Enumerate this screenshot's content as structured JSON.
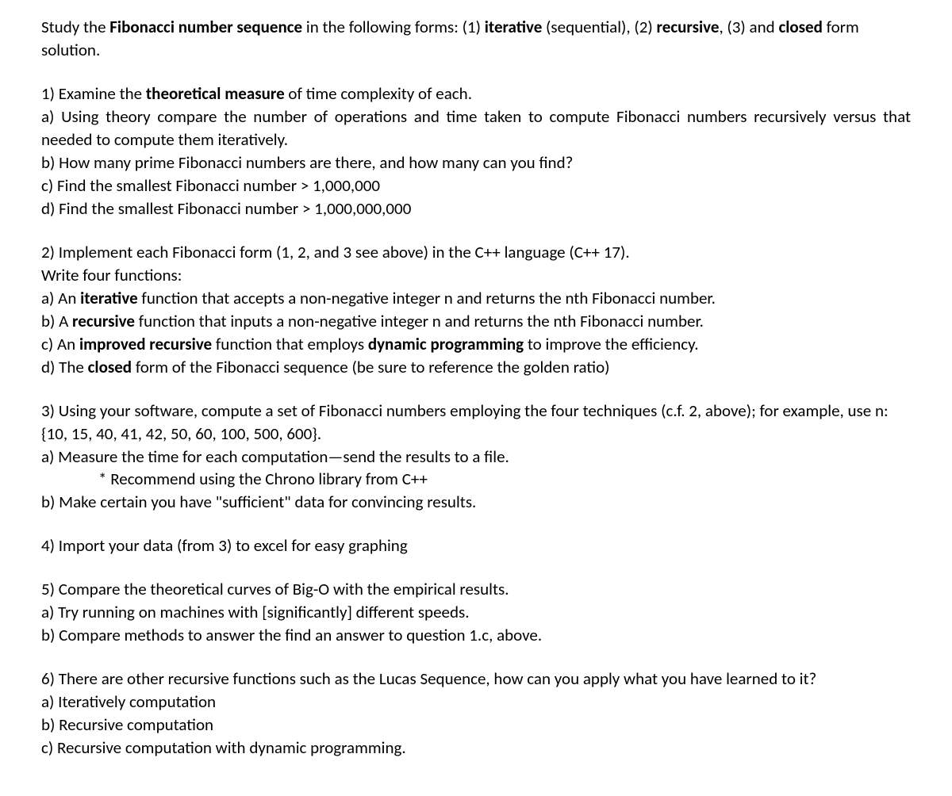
{
  "intro": {
    "pre": "Study the ",
    "b1": "Fibonacci number sequence",
    "mid1": " in the following forms: (1) ",
    "b2": "iterative",
    "mid2": " (sequential), (2) ",
    "b3": "recursive",
    "mid3": ", (3) and ",
    "b4": "closed",
    "post": " form solution."
  },
  "q1": {
    "head_pre": "1) Examine the ",
    "head_b": "theoretical measure",
    "head_post": " of time complexity of each.",
    "a": "a) Using theory compare the number of operations and time taken to compute Fibonacci numbers recursively versus that needed to compute them iteratively.",
    "b": "b) How many prime Fibonacci numbers are there, and how many can you find?",
    "c": "c) Find the smallest Fibonacci number > 1,000,000",
    "d": "d) Find the smallest Fibonacci number > 1,000,000,000"
  },
  "q2": {
    "head": "2) Implement each Fibonacci form (1, 2, and 3 see above) in the C++ language (C++ 17).",
    "sub": "Write four functions:",
    "a_pre": "a) An ",
    "a_b": "iterative",
    "a_post": " function that accepts a non-negative integer n and returns the nth Fibonacci number.",
    "b_pre": "b) A ",
    "b_b": "recursive",
    "b_post": " function that inputs a non-negative integer n and returns the nth Fibonacci number.",
    "c_pre": "c) An ",
    "c_b1": "improved recursive",
    "c_mid": " function that employs ",
    "c_b2": "dynamic programming",
    "c_post": " to improve the efficiency.",
    "d_pre": "d) The ",
    "d_b": "closed",
    "d_post": " form of the Fibonacci sequence (be sure to reference the golden ratio)"
  },
  "q3": {
    "head": "3) Using your software, compute a set of Fibonacci numbers employing the four techniques (c.f. 2, above); for example, use n: {10, 15, 40, 41, 42, 50, 60, 100, 500, 600}.",
    "a": "a) Measure the time for each computation—send the results to a file.",
    "a_sub": "* Recommend using the Chrono library from C++",
    "b": "b) Make certain you have \"sufficient\" data for convincing results."
  },
  "q4": {
    "head": "4) Import your data (from 3) to excel for easy graphing"
  },
  "q5": {
    "head": "5) Compare the theoretical curves of Big-O with the empirical results.",
    "a": "a) Try running on machines with [significantly] different speeds.",
    "b": "b) Compare methods to answer the find an answer to question 1.c, above."
  },
  "q6": {
    "head": "6) There are other recursive functions such as the Lucas Sequence, how can you apply what you have learned to it?",
    "a": "a) Iteratively computation",
    "b": "b) Recursive computation",
    "c": "c) Recursive computation with dynamic programming."
  }
}
